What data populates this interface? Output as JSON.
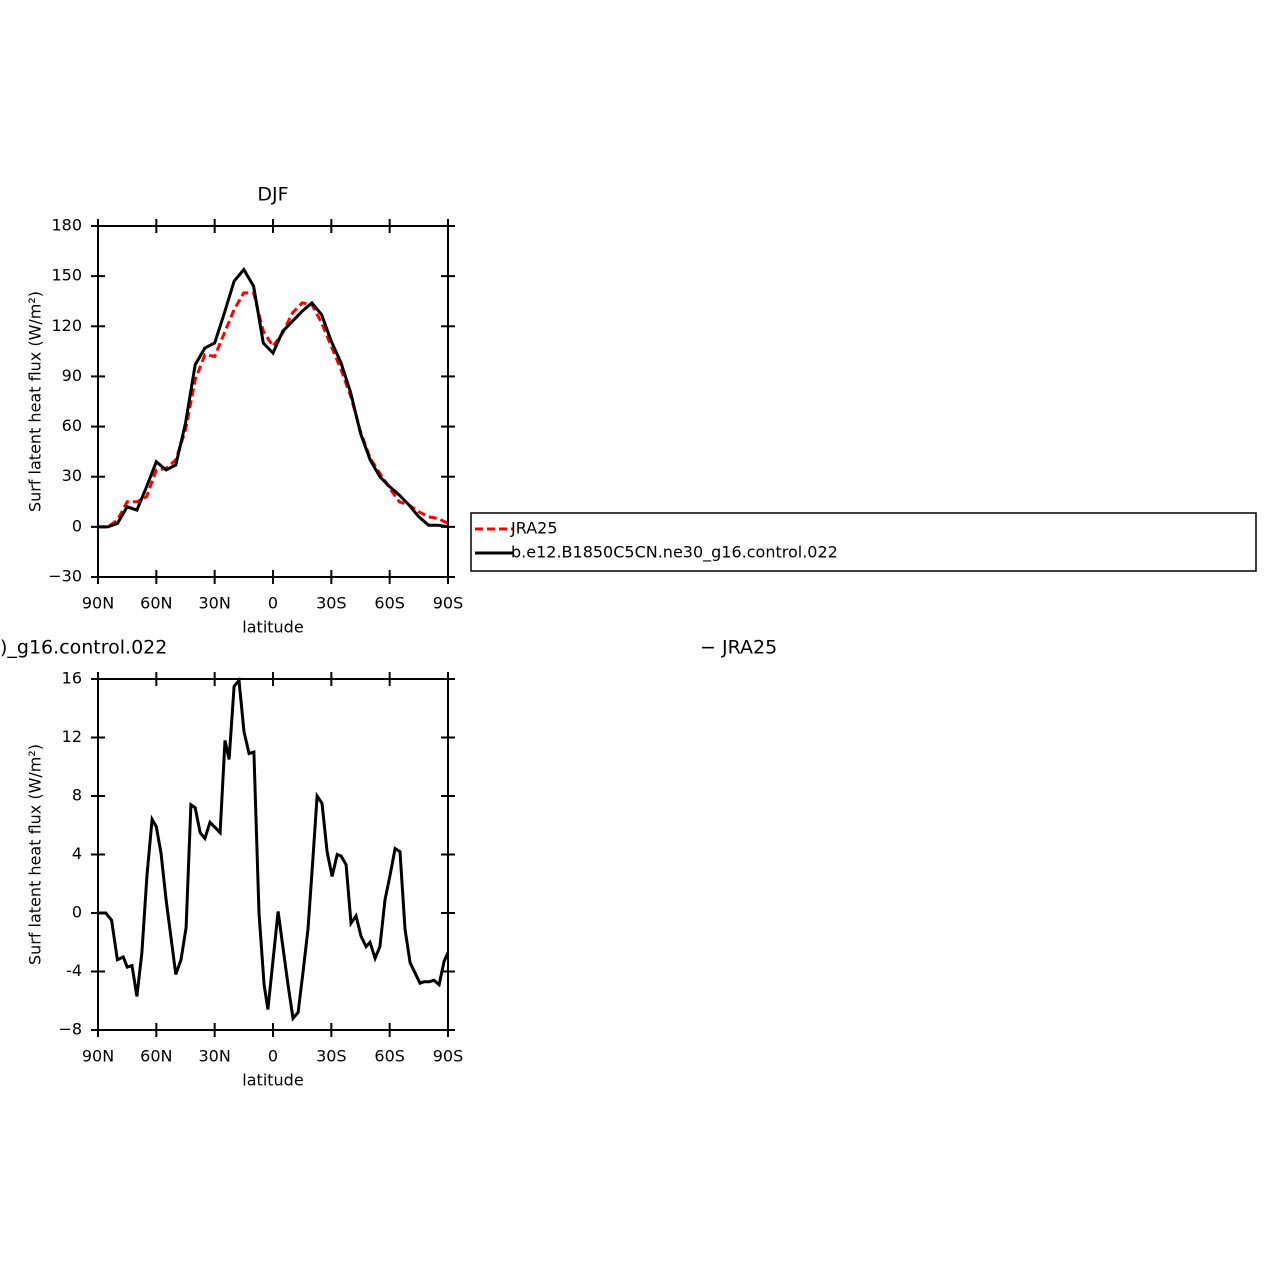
{
  "chart_data": [
    {
      "type": "line",
      "title": "DJF",
      "xlabel": "latitude",
      "ylabel": "Surf latent heat flux (W/m²)",
      "x": [
        90,
        85,
        80,
        75,
        70,
        65,
        60,
        55,
        50,
        45,
        40,
        35,
        30,
        25,
        20,
        15,
        10,
        5,
        0,
        -5,
        -10,
        -15,
        -20,
        -25,
        -30,
        -35,
        -40,
        -45,
        -50,
        -55,
        -60,
        -65,
        -70,
        -75,
        -80,
        -85,
        -90
      ],
      "series": [
        {
          "name": "JRA25",
          "color": "#ff0000",
          "dash": true,
          "values": [
            0,
            0,
            4,
            15,
            15,
            18,
            34,
            35,
            40,
            58,
            88,
            103,
            102,
            116,
            130,
            140,
            140,
            117,
            108,
            116,
            128,
            134,
            133,
            122,
            108,
            94,
            78,
            57,
            41,
            32,
            23,
            15,
            13,
            9,
            6,
            5,
            2
          ]
        },
        {
          "name": "b.e12.B1850C5CN.ne30_g16.control.022",
          "color": "#000000",
          "dash": false,
          "values": [
            0,
            0,
            2,
            12,
            10,
            24,
            39,
            34,
            37,
            62,
            97,
            107,
            110,
            128,
            147,
            154,
            144,
            110,
            104,
            117,
            123,
            129,
            134,
            127,
            111,
            98,
            80,
            56,
            40,
            30,
            24,
            19,
            13,
            6,
            1,
            1,
            0
          ]
        }
      ],
      "xlim": [
        90,
        -90
      ],
      "xticks": [
        {
          "value": 90,
          "label": "90N"
        },
        {
          "value": 60,
          "label": "60N"
        },
        {
          "value": 30,
          "label": "30N"
        },
        0,
        {
          "value": -30,
          "label": "30S"
        },
        {
          "value": -60,
          "label": "60S"
        },
        {
          "value": -90,
          "label": "90S"
        }
      ],
      "ylim": [
        -30,
        180
      ],
      "yticks": [
        {
          "value": -30,
          "label": "−30"
        },
        0,
        30,
        60,
        90,
        120,
        150,
        180
      ],
      "legend": "right"
    },
    {
      "type": "line",
      "title": [
        ")_g16.control.022",
        "− JRA25"
      ],
      "xlabel": "latitude",
      "ylabel": "Surf latent heat flux (W/m²)",
      "x": [
        90,
        86,
        83,
        80,
        77,
        75,
        72.5,
        70,
        67.4,
        64.8,
        62.2,
        60,
        57.6,
        55,
        50,
        47.3,
        44.7,
        42.2,
        40,
        37.5,
        35,
        32.4,
        27.2,
        24.7,
        22.6,
        20,
        17.5,
        14.9,
        12.3,
        9.8,
        7.2,
        4.6,
        2.6,
        -2.6,
        -7.7,
        -10.3,
        -12.9,
        -15.5,
        -18,
        -20.6,
        -22.7,
        -25.2,
        -27.8,
        -30.4,
        -33,
        -35,
        -37.6,
        -40.1,
        -42.7,
        -45.3,
        -47.9,
        -49.9,
        -52.5,
        -55,
        -57.6,
        -60.2,
        -62.8,
        -65.3,
        -67.9,
        -70.5,
        -75.6,
        -77.7,
        -80.3,
        -82.8,
        -85.4,
        -88,
        -90
      ],
      "values": [
        0,
        0,
        -0.5,
        -3.2,
        -3,
        -3.7,
        -3.6,
        -5.7,
        -2.7,
        2.6,
        6.4,
        5.9,
        4.1,
        0.9,
        -4.2,
        -3.2,
        -1,
        7.4,
        7.2,
        5.5,
        5.1,
        6.2,
        5.5,
        11.8,
        10.5,
        15.5,
        15.9,
        12.4,
        10.9,
        11,
        0,
        -4.9,
        -6.6,
        0.1,
        -4.9,
        -7.2,
        -6.8,
        -4,
        -1.1,
        3.9,
        8,
        7.5,
        4.2,
        2.5,
        4,
        3.9,
        3.3,
        -0.7,
        -0.2,
        -1.6,
        -2.3,
        -2,
        -3.1,
        -2.3,
        0.9,
        2.6,
        4.4,
        4.2,
        -1.1,
        -3.4,
        -4.8,
        -4.7,
        -4.7,
        -4.6,
        -4.9,
        -3.3,
        -2.7
      ],
      "color": "#000000",
      "xlim": [
        90,
        -90
      ],
      "xticks": [
        {
          "value": 90,
          "label": "90N"
        },
        {
          "value": 60,
          "label": "60N"
        },
        {
          "value": 30,
          "label": "30N"
        },
        0,
        {
          "value": -30,
          "label": "30S"
        },
        {
          "value": -60,
          "label": "60S"
        },
        {
          "value": -90,
          "label": "90S"
        }
      ],
      "ylim": [
        -8,
        16
      ],
      "yticks": [
        {
          "value": -8,
          "label": "−8"
        },
        -4,
        0,
        4,
        8,
        12,
        16
      ]
    }
  ]
}
